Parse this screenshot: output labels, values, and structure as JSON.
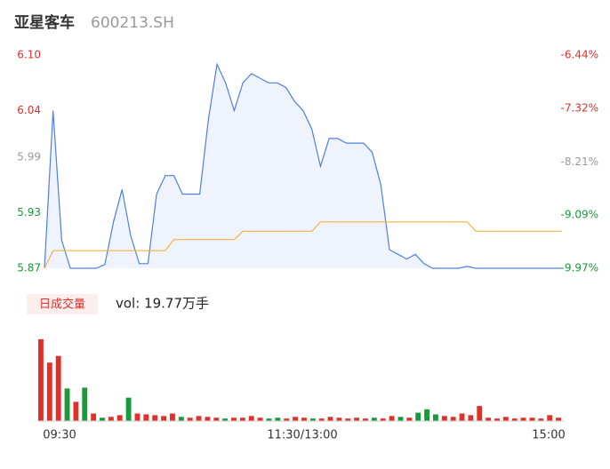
{
  "chart_data": {
    "type": "intraday",
    "title": "亚星客车",
    "subtitle": "600213.SH",
    "ylim": [
      5.87,
      6.1
    ],
    "yticks": [
      {
        "value": 6.1,
        "label": "6.10"
      },
      6.04,
      5.99,
      5.93,
      5.87
    ],
    "y2lim": [
      -9.97,
      -6.44
    ],
    "y2ticks": [
      {
        "value": -6.44,
        "label": "-6.44%"
      },
      {
        "value": -7.32,
        "label": "-7.32%"
      },
      {
        "value": -8.21,
        "label": "-8.21%"
      },
      {
        "value": -9.09,
        "label": "-9.09%"
      },
      {
        "value": -9.97,
        "label": "-9.97%"
      }
    ],
    "tick_colors": [
      "#e0302a",
      "#e0302a",
      "#999999",
      "#1a9a3a",
      "#1a9a3a"
    ],
    "xticks": [
      "09:30",
      "11:30/13:00",
      "15:00"
    ],
    "series": [
      {
        "color": "#4d7fe6",
        "values": [
          5.87,
          6.04,
          5.9,
          5.87,
          5.87,
          5.87,
          5.87,
          5.874,
          5.92,
          5.955,
          5.905,
          5.875,
          5.875,
          5.95,
          5.97,
          5.97,
          5.95,
          5.95,
          5.95,
          6.03,
          6.09,
          6.07,
          6.04,
          6.07,
          6.08,
          6.075,
          6.07,
          6.07,
          6.065,
          6.05,
          6.04,
          6.02,
          5.98,
          6.01,
          6.01,
          6.005,
          6.005,
          6.005,
          5.995,
          5.96,
          5.89,
          5.885,
          5.88,
          5.885,
          5.875,
          5.87,
          5.87,
          5.87,
          5.87,
          5.872,
          5.87,
          5.87,
          5.87,
          5.87,
          5.87,
          5.87,
          5.87,
          5.87,
          5.87,
          5.87,
          5.87
        ]
      },
      {
        "color": "#f5b342",
        "values": [
          5.87,
          5.889,
          5.889,
          5.889,
          5.889,
          5.889,
          5.889,
          5.889,
          5.889,
          5.889,
          5.889,
          5.889,
          5.889,
          5.889,
          5.889,
          5.901,
          5.901,
          5.901,
          5.901,
          5.901,
          5.901,
          5.901,
          5.901,
          5.91,
          5.91,
          5.91,
          5.91,
          5.91,
          5.91,
          5.91,
          5.91,
          5.91,
          5.92,
          5.92,
          5.92,
          5.92,
          5.92,
          5.92,
          5.92,
          5.92,
          5.92,
          5.92,
          5.92,
          5.92,
          5.92,
          5.92,
          5.92,
          5.92,
          5.92,
          5.92,
          5.91,
          5.91,
          5.91,
          5.91,
          5.91,
          5.91,
          5.91,
          5.91,
          5.91,
          5.91,
          5.91
        ]
      }
    ],
    "volume_title": "日成交量",
    "volume_label": "vol: 19.77万手",
    "volume_ylim": [
      0,
      10000
    ],
    "volume": [
      9800,
      7000,
      7800,
      3900,
      2300,
      4000,
      900,
      400,
      500,
      700,
      2800,
      900,
      800,
      700,
      600,
      900,
      500,
      400,
      600,
      500,
      400,
      300,
      400,
      400,
      600,
      400,
      300,
      400,
      300,
      500,
      400,
      300,
      300,
      500,
      400,
      300,
      400,
      300,
      400,
      300,
      600,
      500,
      400,
      1000,
      1400,
      800,
      600,
      500,
      900,
      700,
      1800,
      400,
      300,
      500,
      300,
      400,
      400,
      300,
      700,
      400
    ],
    "volume_colors": [
      "#e0302a",
      "#e0302a",
      "#e0302a",
      "#1a9a3a",
      "#e0302a",
      "#1a9a3a",
      "#e0302a",
      "#1a9a3a",
      "#e0302a",
      "#e0302a",
      "#1a9a3a",
      "#e0302a",
      "#e0302a",
      "#e0302a",
      "#e0302a",
      "#e0302a",
      "#1a9a3a",
      "#e0302a",
      "#e0302a",
      "#e0302a",
      "#e0302a",
      "#1a9a3a",
      "#e0302a",
      "#e0302a",
      "#e0302a",
      "#e0302a",
      "#1a9a3a",
      "#1a9a3a",
      "#e0302a",
      "#e0302a",
      "#e0302a",
      "#1a9a3a",
      "#e0302a",
      "#e0302a",
      "#e0302a",
      "#e0302a",
      "#e0302a",
      "#e0302a",
      "#1a9a3a",
      "#e0302a",
      "#e0302a",
      "#1a9a3a",
      "#e0302a",
      "#1a9a3a",
      "#1a9a3a",
      "#1a9a3a",
      "#e0302a",
      "#e0302a",
      "#e0302a",
      "#e0302a",
      "#e0302a",
      "#e0302a",
      "#e0302a",
      "#e0302a",
      "#e0302a",
      "#e0302a",
      "#e0302a",
      "#e0302a",
      "#e0302a",
      "#e0302a"
    ]
  }
}
